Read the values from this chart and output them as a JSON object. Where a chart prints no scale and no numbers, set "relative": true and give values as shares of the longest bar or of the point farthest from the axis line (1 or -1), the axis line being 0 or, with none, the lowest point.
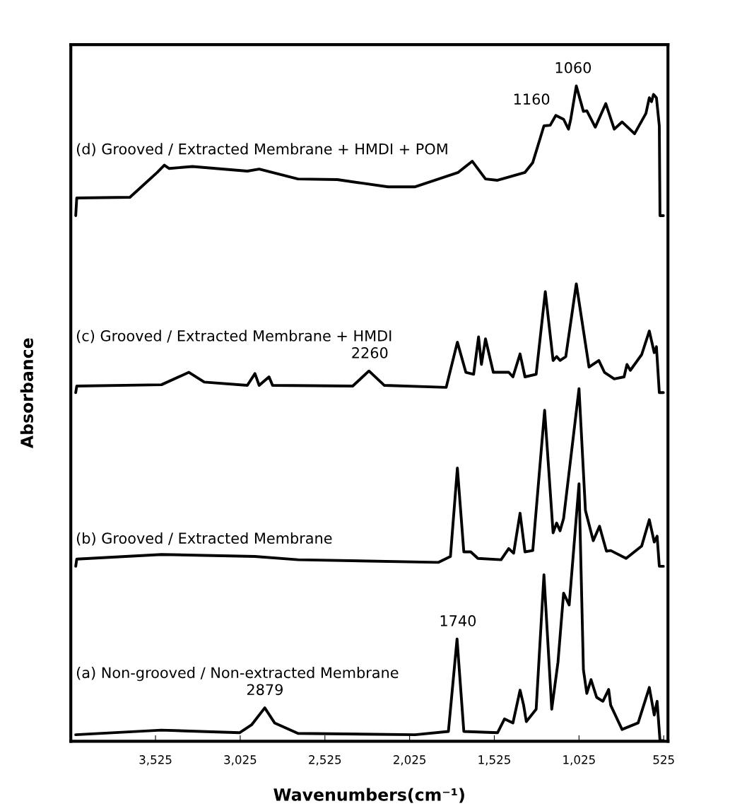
{
  "chart_data": {
    "type": "line",
    "relative": true,
    "xlabel": "Wavenumbers(cm⁻¹)",
    "ylabel": "Absorbance",
    "xlim": [
      4025,
      500
    ],
    "xticks": [
      {
        "value": 3525,
        "label": "3,525"
      },
      {
        "value": 3025,
        "label": "3,025"
      },
      {
        "value": 2525,
        "label": "2,525"
      },
      {
        "value": 2025,
        "label": "2,025"
      },
      {
        "value": 1525,
        "label": "1,525"
      },
      {
        "value": 1025,
        "label": "1,025"
      },
      {
        "value": 525,
        "label": "525"
      }
    ],
    "tick_labels": "x",
    "grid": false,
    "legend": false,
    "marker": "none",
    "line_style": "solid",
    "series": [
      {
        "name": "(a) Non-grooved / Non-extracted Membrane",
        "color": "#000000",
        "x": [
          3996,
          3490,
          3029,
          2958,
          2880,
          2822,
          2684,
          1992,
          1796,
          1745,
          1705,
          1506,
          1465,
          1415,
          1373,
          1352,
          1336,
          1278,
          1232,
          1186,
          1149,
          1116,
          1083,
          1025,
          999,
          979,
          954,
          921,
          884,
          850,
          838,
          771,
          676,
          610,
          581,
          564,
          547,
          527
        ],
        "values": [
          0.01,
          0.017,
          0.013,
          0.025,
          0.051,
          0.028,
          0.012,
          0.01,
          0.015,
          0.156,
          0.015,
          0.013,
          0.034,
          0.028,
          0.078,
          0.055,
          0.03,
          0.049,
          0.254,
          0.049,
          0.121,
          0.226,
          0.208,
          0.393,
          0.109,
          0.073,
          0.094,
          0.067,
          0.061,
          0.079,
          0.055,
          0.018,
          0.028,
          0.082,
          0.04,
          0.061,
          0.001,
          0.001
        ]
      },
      {
        "name": "(b) Grooved / Extracted Membrane",
        "color": "#000000",
        "x": [
          3996,
          3990,
          3490,
          2938,
          2684,
          1854,
          1784,
          1743,
          1705,
          1664,
          1622,
          1485,
          1440,
          1411,
          1373,
          1344,
          1298,
          1228,
          1178,
          1157,
          1137,
          1116,
          1025,
          987,
          941,
          904,
          863,
          838,
          747,
          655,
          610,
          581,
          564,
          551,
          527
        ],
        "values": [
          0.267,
          0.278,
          0.285,
          0.282,
          0.277,
          0.273,
          0.282,
          0.417,
          0.289,
          0.289,
          0.279,
          0.277,
          0.294,
          0.287,
          0.348,
          0.289,
          0.291,
          0.505,
          0.318,
          0.333,
          0.321,
          0.34,
          0.538,
          0.352,
          0.306,
          0.328,
          0.29,
          0.291,
          0.279,
          0.298,
          0.338,
          0.304,
          0.313,
          0.267,
          0.267
        ]
      },
      {
        "name": "(c) Grooved / Extracted Membrane + HMDI",
        "color": "#000000",
        "x": [
          3996,
          3990,
          3490,
          3328,
          3237,
          2983,
          2938,
          2913,
          2855,
          2834,
          2361,
          2265,
          2174,
          1809,
          1743,
          1693,
          1647,
          1618,
          1601,
          1577,
          1531,
          1440,
          1415,
          1373,
          1344,
          1278,
          1224,
          1178,
          1157,
          1137,
          1103,
          1041,
          966,
          908,
          875,
          817,
          759,
          742,
          722,
          655,
          610,
          581,
          568,
          551,
          527
        ],
        "values": [
          0.532,
          0.542,
          0.544,
          0.563,
          0.548,
          0.543,
          0.561,
          0.543,
          0.556,
          0.543,
          0.542,
          0.565,
          0.543,
          0.54,
          0.609,
          0.563,
          0.56,
          0.617,
          0.575,
          0.614,
          0.563,
          0.563,
          0.556,
          0.591,
          0.556,
          0.56,
          0.686,
          0.581,
          0.587,
          0.581,
          0.587,
          0.698,
          0.571,
          0.581,
          0.563,
          0.553,
          0.556,
          0.575,
          0.566,
          0.59,
          0.626,
          0.593,
          0.602,
          0.532,
          0.532
        ]
      },
      {
        "name": "(d) Grooved / Extracted Membrane + HMDI + POM",
        "color": "#000000",
        "x": [
          3996,
          3990,
          3676,
          3515,
          3473,
          3444,
          3307,
          2983,
          2913,
          2684,
          2452,
          2153,
          1992,
          1738,
          1655,
          1577,
          1506,
          1344,
          1298,
          1232,
          1195,
          1162,
          1116,
          1087,
          1074,
          1041,
          999,
          979,
          929,
          867,
          817,
          771,
          697,
          630,
          610,
          597,
          585,
          568,
          551,
          547,
          527
        ],
        "values": [
          0.802,
          0.829,
          0.83,
          0.868,
          0.879,
          0.874,
          0.877,
          0.87,
          0.873,
          0.858,
          0.857,
          0.846,
          0.846,
          0.868,
          0.885,
          0.858,
          0.856,
          0.868,
          0.883,
          0.939,
          0.94,
          0.955,
          0.949,
          0.934,
          0.949,
          1.0,
          0.961,
          0.962,
          0.937,
          0.973,
          0.934,
          0.945,
          0.927,
          0.958,
          0.982,
          0.976,
          0.987,
          0.982,
          0.939,
          0.802,
          0.802
        ]
      }
    ],
    "annotations": [
      {
        "text": "2879",
        "x": 2879,
        "y": 0.051
      },
      {
        "text": "1740",
        "x": 1740,
        "y": 0.156
      },
      {
        "text": "2260",
        "x": 2260,
        "y": 0.565
      },
      {
        "text": "1160",
        "x": 1160,
        "y": 0.955
      },
      {
        "text": "1060",
        "x": 1060,
        "y": 1.0
      }
    ]
  }
}
